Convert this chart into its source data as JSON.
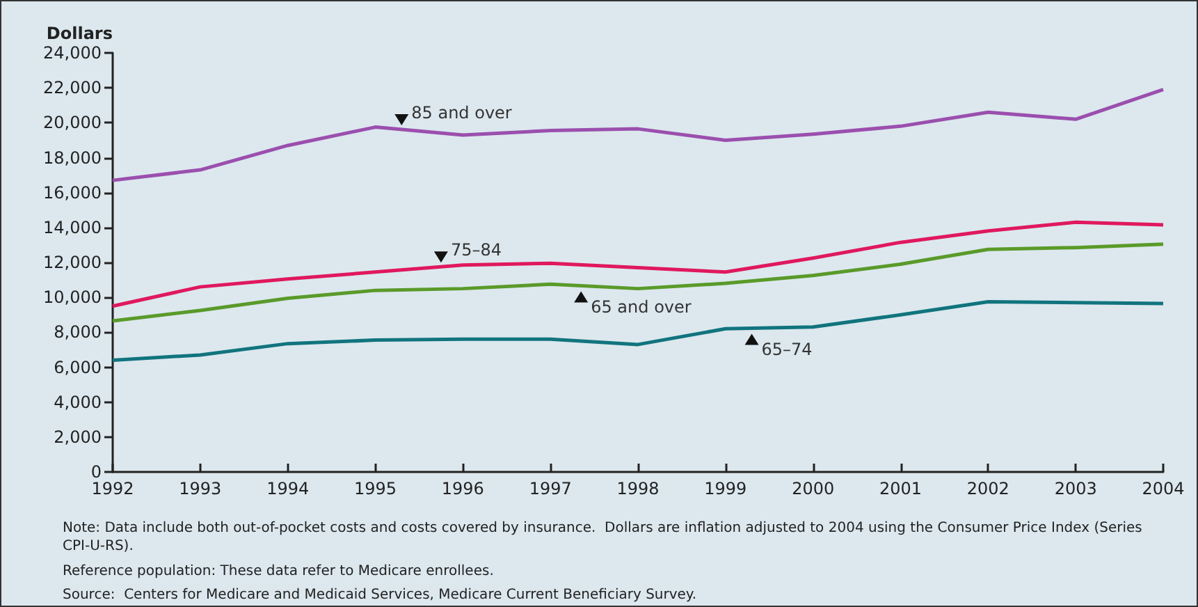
{
  "chart_data": {
    "type": "line",
    "ylabel": "Dollars",
    "x": [
      1992,
      1993,
      1994,
      1995,
      1996,
      1997,
      1998,
      1999,
      2000,
      2001,
      2002,
      2003,
      2004
    ],
    "xlim": [
      1992,
      2004
    ],
    "xticks": [
      1992,
      1993,
      1994,
      1995,
      1996,
      1997,
      1998,
      1999,
      2000,
      2001,
      2002,
      2003,
      2004
    ],
    "ylim": [
      0,
      24000
    ],
    "yticks": [
      {
        "value": 0,
        "label": "0"
      },
      {
        "value": 2000,
        "label": "2,000"
      },
      {
        "value": 4000,
        "label": "4,000"
      },
      {
        "value": 6000,
        "label": "6,000"
      },
      {
        "value": 8000,
        "label": "8,000"
      },
      {
        "value": 10000,
        "label": "10,000"
      },
      {
        "value": 12000,
        "label": "12,000"
      },
      {
        "value": 14000,
        "label": "14,000"
      },
      {
        "value": 16000,
        "label": "16,000"
      },
      {
        "value": 18000,
        "label": "18,000"
      },
      {
        "value": 20000,
        "label": "20,000"
      },
      {
        "value": 22000,
        "label": "22,000"
      },
      {
        "value": 24000,
        "label": "24,000"
      }
    ],
    "series": [
      {
        "name": "85 and over",
        "color": "#9b4fae",
        "values": [
          16700,
          17300,
          18700,
          19750,
          19300,
          19550,
          19650,
          19000,
          19350,
          19800,
          20600,
          20200,
          21900
        ]
      },
      {
        "name": "75–84",
        "color": "#e0185e",
        "values": [
          9500,
          10600,
          11050,
          11450,
          11850,
          11950,
          11700,
          11450,
          12250,
          13150,
          13800,
          14300,
          14150
        ]
      },
      {
        "name": "65 and over",
        "color": "#5a9a2a",
        "values": [
          8650,
          9250,
          9950,
          10400,
          10500,
          10750,
          10500,
          10800,
          11250,
          11900,
          12750,
          12850,
          13050
        ]
      },
      {
        "name": "65–74",
        "color": "#11747e",
        "values": [
          6400,
          6700,
          7350,
          7550,
          7600,
          7600,
          7300,
          8200,
          8300,
          9000,
          9750,
          9700,
          9650
        ]
      }
    ],
    "annotations": [
      "Note: Data include both out-of-pocket costs and costs covered by insurance.  Dollars are inflation adjusted to 2004 using the Consumer Price Index (Series CPI-U-RS).",
      "Reference population: These data refer to Medicare enrollees.",
      "Source:  Centers for Medicare and Medicaid Services, Medicare Current Beneficiary Survey."
    ]
  }
}
